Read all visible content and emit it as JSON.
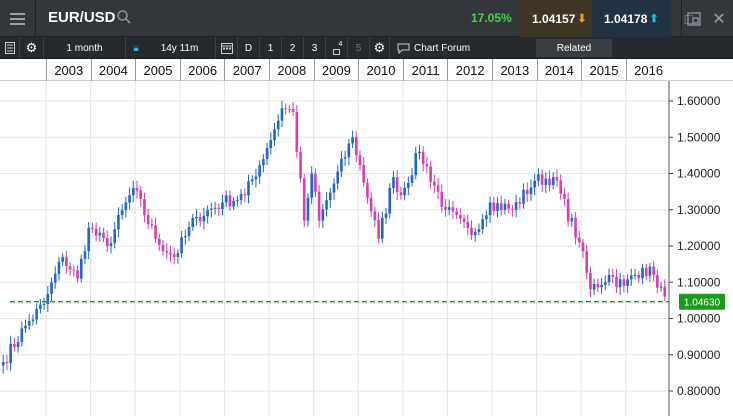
{
  "header": {
    "symbol": "EUR/USD",
    "change": "17.05%",
    "bid": "1.04157",
    "ask": "1.04178"
  },
  "toolbar": {
    "interval": "1 month",
    "range": "14y 11m",
    "period_d": "D",
    "period_1": "1",
    "period_2": "2",
    "period_3": "3",
    "period_4": "4",
    "period_5": "5",
    "chart_forum": "Chart Forum",
    "related": "Related"
  },
  "icons": {
    "menu": "menu-icon",
    "search": "search-icon",
    "list": "list-icon",
    "settings": "gear-icon",
    "lock": "lock-icon",
    "calendar": "calendar-icon",
    "forum": "chat-icon",
    "new_window": "new-window-icon",
    "popout": "popout-icon",
    "close": "close-icon"
  },
  "colors": {
    "up_candle": "#2166c9",
    "down_candle": "#d63fae",
    "price_line": "#13a013",
    "current_price_label": "#1b9a1b",
    "change_positive": "#4ad14a",
    "bid_arrow": "#f29b1e",
    "ask_arrow": "#2ab4e9"
  },
  "current_price": "1.04630",
  "chart_data": {
    "type": "candlestick",
    "x_labels": [
      "2003",
      "2004",
      "2005",
      "2006",
      "2007",
      "2008",
      "2009",
      "2010",
      "2011",
      "2012",
      "2013",
      "2014",
      "2015",
      "2016"
    ],
    "y_ticks": [
      "1.60000",
      "1.50000",
      "1.40000",
      "1.30000",
      "1.20000",
      "1.10000",
      "1.00000",
      "0.90000",
      "0.80000"
    ],
    "ylim": [
      0.75,
      1.66
    ],
    "reference_line": 1.0463,
    "grid": true,
    "close_path": [
      [
        "2002-01",
        0.88
      ],
      [
        "2002-07",
        0.98
      ],
      [
        "2002-12",
        1.04
      ],
      [
        "2003-05",
        1.17
      ],
      [
        "2003-09",
        1.11
      ],
      [
        "2003-12",
        1.25
      ],
      [
        "2004-05",
        1.2
      ],
      [
        "2004-12",
        1.36
      ],
      [
        "2005-06",
        1.22
      ],
      [
        "2005-11",
        1.17
      ],
      [
        "2006-05",
        1.28
      ],
      [
        "2006-12",
        1.32
      ],
      [
        "2007-06",
        1.34
      ],
      [
        "2007-12",
        1.47
      ],
      [
        "2008-04",
        1.58
      ],
      [
        "2008-07",
        1.57
      ],
      [
        "2008-10",
        1.27
      ],
      [
        "2008-12",
        1.4
      ],
      [
        "2009-02",
        1.27
      ],
      [
        "2009-11",
        1.5
      ],
      [
        "2010-06",
        1.22
      ],
      [
        "2010-10",
        1.39
      ],
      [
        "2010-12",
        1.34
      ],
      [
        "2011-05",
        1.46
      ],
      [
        "2011-12",
        1.3
      ],
      [
        "2012-07",
        1.23
      ],
      [
        "2012-12",
        1.32
      ],
      [
        "2013-06",
        1.3
      ],
      [
        "2013-12",
        1.38
      ],
      [
        "2014-05",
        1.39
      ],
      [
        "2014-12",
        1.21
      ],
      [
        "2015-03",
        1.08
      ],
      [
        "2015-08",
        1.12
      ],
      [
        "2015-12",
        1.09
      ],
      [
        "2016-05",
        1.14
      ],
      [
        "2016-08",
        1.12
      ],
      [
        "2016-11",
        1.06
      ]
    ]
  }
}
